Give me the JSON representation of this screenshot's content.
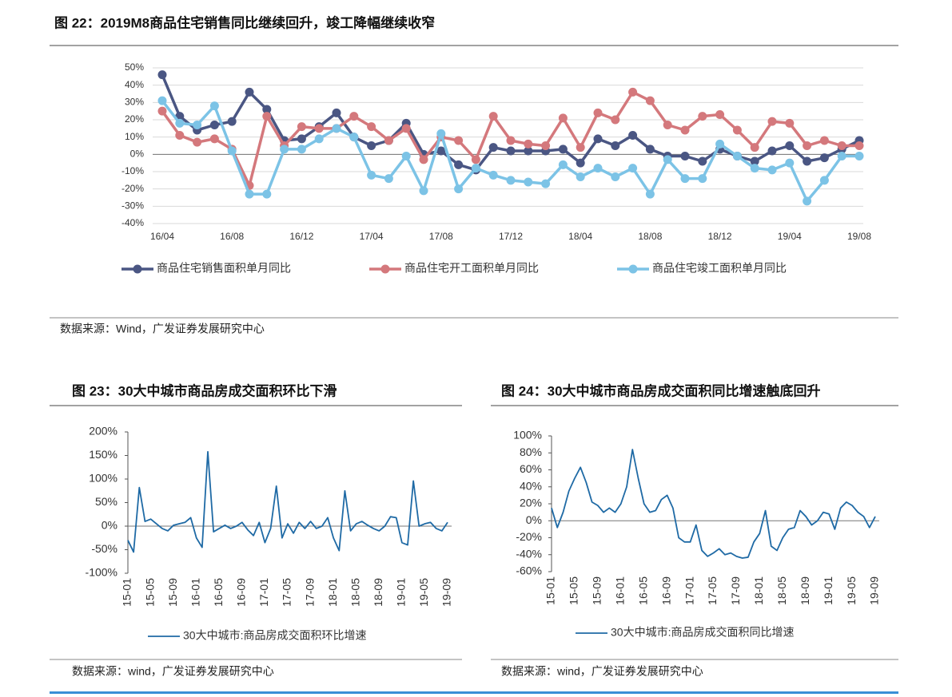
{
  "chart_data": [
    {
      "type": "line",
      "title": "图 22：2019M8商品住宅销售同比继续回升，竣工降幅继续收窄",
      "source": "数据来源：Wind，广发证券发展研究中心",
      "categories": [
        "16/04",
        null,
        null,
        null,
        "16/08",
        null,
        null,
        null,
        "16/12",
        null,
        null,
        null,
        "17/04",
        null,
        null,
        null,
        "17/08",
        null,
        null,
        null,
        "17/12",
        null,
        null,
        null,
        "18/04",
        null,
        null,
        null,
        "18/08",
        null,
        null,
        null,
        "18/12",
        null,
        null,
        null,
        "19/04",
        null,
        null,
        null,
        "19/08"
      ],
      "series": [
        {
          "name": "商品住宅销售面积单月同比",
          "color": "#4a5683",
          "values": [
            46,
            22,
            14,
            17,
            19,
            36,
            26,
            8,
            9,
            16,
            24,
            10,
            5,
            8,
            18,
            0,
            2,
            -6,
            -9,
            4,
            2,
            2,
            2,
            3,
            -5,
            9,
            5,
            11,
            3,
            -1,
            -1,
            -4,
            3,
            -1,
            -4,
            2,
            5,
            -4,
            -2,
            3,
            8
          ]
        },
        {
          "name": "商品住宅开工面积单月同比",
          "color": "#d4787c",
          "values": [
            25,
            11,
            7,
            9,
            3,
            -18,
            22,
            5,
            16,
            15,
            15,
            22,
            16,
            8,
            15,
            -3,
            10,
            8,
            -3,
            22,
            8,
            6,
            5,
            21,
            4,
            24,
            20,
            36,
            31,
            17,
            14,
            22,
            23,
            14,
            4,
            19,
            18,
            5,
            8,
            5,
            5
          ]
        },
        {
          "name": "商品住宅竣工面积单月同比",
          "color": "#7cc3e6",
          "values": [
            31,
            18,
            17,
            28,
            2,
            -23,
            -23,
            3,
            3,
            9,
            15,
            10,
            -12,
            -14,
            -1,
            -21,
            12,
            -20,
            -8,
            -12,
            -15,
            -16,
            -17,
            -6,
            -13,
            -8,
            -13,
            -8,
            -23,
            -3,
            -14,
            -14,
            6,
            -1,
            -8,
            -9,
            -5,
            -27,
            -15,
            -1,
            -1
          ]
        }
      ],
      "ylim": [
        -40,
        50
      ],
      "yticks": [
        {
          "value": -40,
          "label": "-40%"
        },
        {
          "value": -30,
          "label": "-30%"
        },
        {
          "value": -20,
          "label": "-20%"
        },
        {
          "value": -10,
          "label": "-10%"
        },
        {
          "value": 0,
          "label": "0%"
        },
        {
          "value": 10,
          "label": "10%"
        },
        {
          "value": 20,
          "label": "20%"
        },
        {
          "value": 30,
          "label": "30%"
        },
        {
          "value": 40,
          "label": "40%"
        },
        {
          "value": 50,
          "label": "50%"
        }
      ],
      "grid": true,
      "markers": true
    },
    {
      "type": "line",
      "title": "图 23：30大中城市商品房成交面积环比下滑",
      "source": "数据来源：wind，广发证券发展研究中心",
      "categories": [
        "15-01",
        null,
        null,
        null,
        "15-05",
        null,
        null,
        null,
        "15-09",
        null,
        null,
        null,
        "16-01",
        null,
        null,
        null,
        "16-05",
        null,
        null,
        null,
        "16-09",
        null,
        null,
        null,
        "17-01",
        null,
        null,
        null,
        "17-05",
        null,
        null,
        null,
        "17-09",
        null,
        null,
        null,
        "18-01",
        null,
        null,
        null,
        "18-05",
        null,
        null,
        null,
        "18-09",
        null,
        null,
        null,
        "19-01",
        null,
        null,
        null,
        "19-05",
        null,
        null,
        null,
        "19-09"
      ],
      "series": [
        {
          "name": "30大中城市:商品房成交面积环比增速",
          "color": "#1f6aa5",
          "values": [
            -30,
            -55,
            82,
            10,
            15,
            5,
            -5,
            -10,
            2,
            5,
            8,
            18,
            -25,
            -45,
            158,
            -12,
            -5,
            2,
            -5,
            0,
            8,
            -8,
            -20,
            8,
            -35,
            -5,
            85,
            -25,
            5,
            -15,
            8,
            -5,
            10,
            -5,
            0,
            18,
            -25,
            -52,
            75,
            -10,
            5,
            10,
            2,
            -5,
            -10,
            0,
            20,
            18,
            -35,
            -40,
            96,
            0,
            5,
            8,
            -5,
            -10,
            8
          ]
        }
      ],
      "ylim": [
        -100,
        200
      ],
      "yticks": [
        {
          "value": -100,
          "label": "-100%"
        },
        {
          "value": -50,
          "label": "-50%"
        },
        {
          "value": 0,
          "label": "0%"
        },
        {
          "value": 50,
          "label": "50%"
        },
        {
          "value": 100,
          "label": "100%"
        },
        {
          "value": 150,
          "label": "150%"
        },
        {
          "value": 200,
          "label": "200%"
        }
      ],
      "grid": false,
      "markers": false
    },
    {
      "type": "line",
      "title": "图 24：30大中城市商品房成交面积同比增速触底回升",
      "source": "数据来源：wind，广发证券发展研究中心",
      "categories": [
        "15-01",
        null,
        null,
        null,
        "15-05",
        null,
        null,
        null,
        "15-09",
        null,
        null,
        null,
        "16-01",
        null,
        null,
        null,
        "16-05",
        null,
        null,
        null,
        "16-09",
        null,
        null,
        null,
        "17-01",
        null,
        null,
        null,
        "17-05",
        null,
        null,
        null,
        "17-09",
        null,
        null,
        null,
        "18-01",
        null,
        null,
        null,
        "18-05",
        null,
        null,
        null,
        "18-09",
        null,
        null,
        null,
        "19-01",
        null,
        null,
        null,
        "19-05",
        null,
        null,
        null,
        "19-09"
      ],
      "series": [
        {
          "name": "30大中城市:商品房成交面积同比增速",
          "color": "#1f6aa5",
          "values": [
            15,
            -8,
            10,
            35,
            50,
            63,
            45,
            22,
            18,
            10,
            15,
            10,
            20,
            40,
            84,
            50,
            20,
            10,
            12,
            25,
            30,
            15,
            -20,
            -25,
            -25,
            -5,
            -35,
            -42,
            -38,
            -33,
            -40,
            -38,
            -42,
            -44,
            -43,
            -25,
            -15,
            12,
            -30,
            -35,
            -20,
            -10,
            -8,
            12,
            5,
            -5,
            0,
            10,
            8,
            -10,
            15,
            22,
            18,
            10,
            5,
            -8,
            5
          ]
        }
      ],
      "ylim": [
        -60,
        100
      ],
      "yticks": [
        {
          "value": -60,
          "label": "-60%"
        },
        {
          "value": -40,
          "label": "-40%"
        },
        {
          "value": -20,
          "label": "-20%"
        },
        {
          "value": 0,
          "label": "0%"
        },
        {
          "value": 20,
          "label": "20%"
        },
        {
          "value": 40,
          "label": "40%"
        },
        {
          "value": 60,
          "label": "60%"
        },
        {
          "value": 80,
          "label": "80%"
        },
        {
          "value": 100,
          "label": "100%"
        }
      ],
      "grid": false,
      "markers": false
    }
  ]
}
